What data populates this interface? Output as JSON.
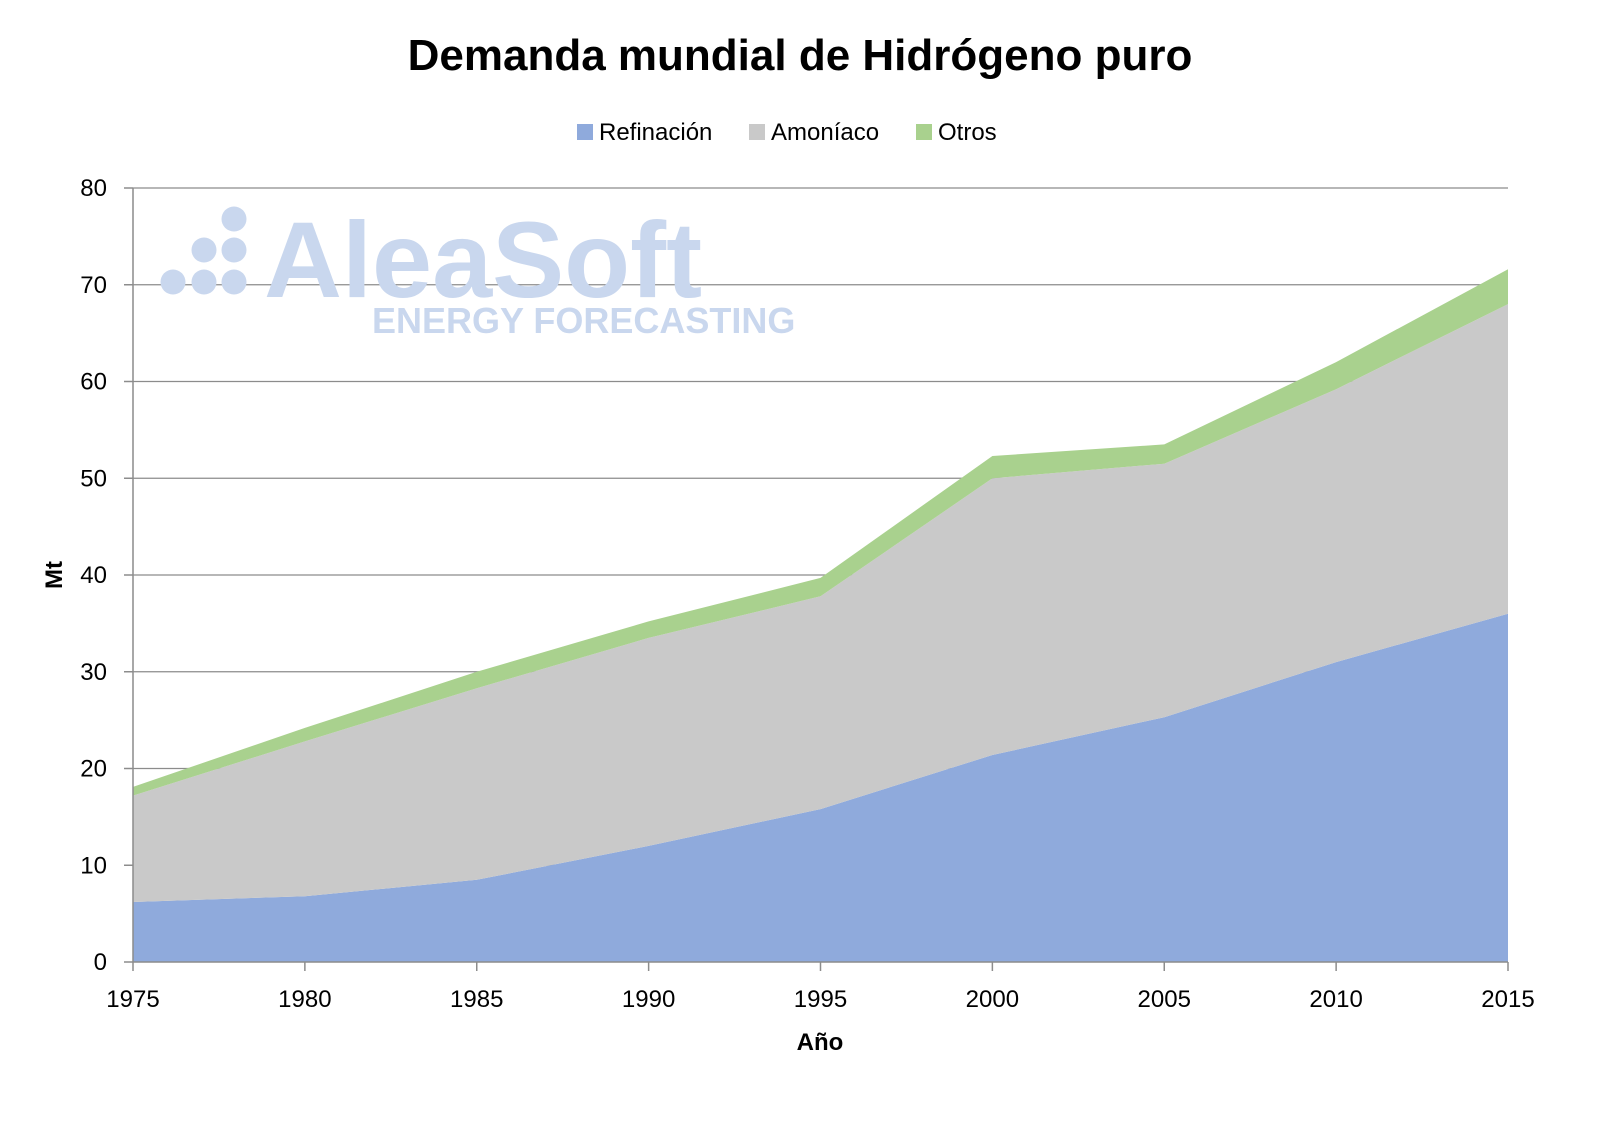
{
  "chart_data": {
    "type": "area",
    "stacked": true,
    "title": "Demanda mundial de Hidrógeno puro",
    "xlabel": "Año",
    "ylabel": "Mt",
    "x": [
      1975,
      1980,
      1985,
      1990,
      1995,
      2000,
      2005,
      2010,
      2015
    ],
    "x_ticks": [
      "1975",
      "1980",
      "1985",
      "1990",
      "1995",
      "2000",
      "2005",
      "2010",
      "2015"
    ],
    "y_ticks": [
      "0",
      "10",
      "20",
      "30",
      "40",
      "50",
      "60",
      "70",
      "80"
    ],
    "ylim": [
      0,
      80
    ],
    "grid": true,
    "legend_position": "top-center",
    "series": [
      {
        "name": "Refinación",
        "color": "#8faadc",
        "values": [
          6.2,
          6.8,
          8.5,
          12.0,
          15.8,
          21.4,
          25.3,
          31.0,
          36.0
        ]
      },
      {
        "name": "Amoníaco",
        "color": "#c9c9c9",
        "values": [
          11.0,
          16.0,
          19.8,
          21.5,
          22.0,
          28.6,
          26.2,
          28.2,
          32.0
        ]
      },
      {
        "name": "Otros",
        "color": "#a9d18e",
        "values": [
          0.9,
          1.4,
          1.7,
          1.7,
          1.9,
          2.3,
          2.0,
          2.8,
          3.6
        ]
      }
    ]
  },
  "watermark": {
    "brand": "AleaSoft",
    "tagline": "ENERGY FORECASTING",
    "color": "#c9d7ee"
  }
}
